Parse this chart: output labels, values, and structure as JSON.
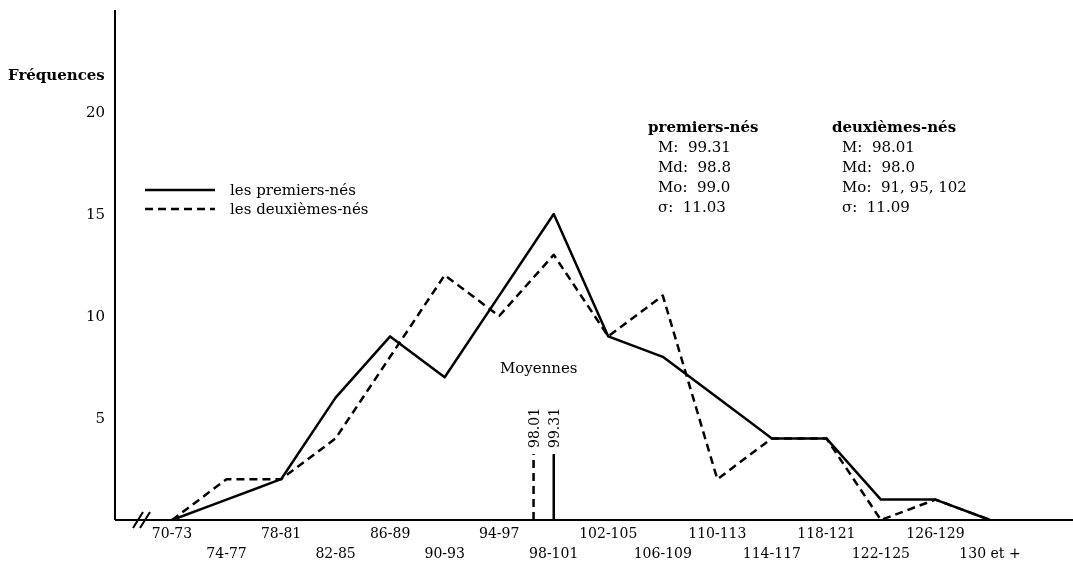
{
  "chart_data": {
    "type": "line",
    "ylabel": "Fréquences",
    "categories": [
      "70-73",
      "74-77",
      "78-81",
      "82-85",
      "86-89",
      "90-93",
      "94-97",
      "98-101",
      "102-105",
      "106-109",
      "110-113",
      "114-117",
      "118-121",
      "122-125",
      "126-129",
      "130 et +"
    ],
    "ylim": [
      0,
      25
    ],
    "yticks": [
      5,
      10,
      15,
      20
    ],
    "series": [
      {
        "name": "les premiers-nés",
        "color": "#000000",
        "line_style": "solid",
        "values": [
          0,
          1,
          2,
          6,
          9,
          7,
          11,
          15,
          9,
          8,
          6,
          4,
          4,
          1,
          1,
          0
        ]
      },
      {
        "name": "les deuxièmes-nés",
        "color": "#000000",
        "line_style": "dashed",
        "values": [
          0,
          2,
          2,
          4,
          8,
          12,
          10,
          13,
          9,
          11,
          2,
          4,
          4,
          0,
          1,
          0
        ]
      }
    ],
    "annotations": [
      "Moyennes",
      "98.01",
      "99.31",
      "premiers-nés",
      "M:  99.31",
      "Md:  98.8",
      "Mo:  99.0",
      "σ:  11.03",
      "deuxièmes-nés",
      "M:  98.01",
      "Md:  98.0",
      "Mo:  91, 95, 102",
      "σ:  11.09"
    ],
    "legend": "top left",
    "grid": false
  }
}
